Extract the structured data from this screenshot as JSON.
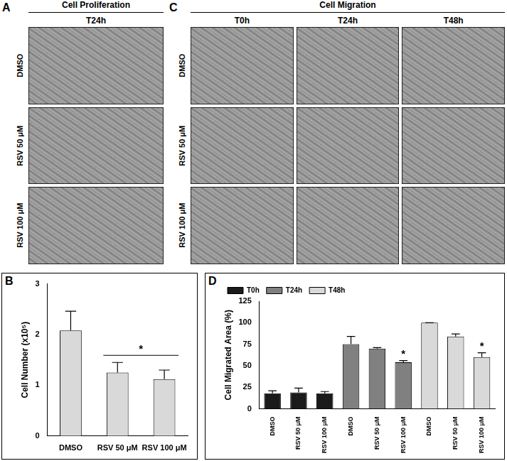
{
  "panels": {
    "A": {
      "letter": "A",
      "header": "Cell Proliferation",
      "columns": [
        "T24h"
      ],
      "rows": [
        "DMSO",
        "RSV 50 μM",
        "RSV 100 μM"
      ]
    },
    "C": {
      "letter": "C",
      "header": "Cell Migration",
      "columns": [
        "T0h",
        "T24h",
        "T48h"
      ],
      "rows": [
        "DMSO",
        "RSV 50 μM",
        "RSV 100 μM"
      ]
    }
  },
  "chart_data": [
    {
      "panel": "B",
      "type": "bar",
      "categories": [
        "DMSO",
        "RSV 50 μM",
        "RSV 100 μM"
      ],
      "values": [
        2.08,
        1.25,
        1.12
      ],
      "errors": [
        0.38,
        0.2,
        0.18
      ],
      "color": "#d9d9d9",
      "y_label": "Cell Number (x10⁵)",
      "ylim": [
        0,
        3
      ],
      "yticks": [
        0,
        1,
        2,
        3
      ],
      "grid": false,
      "annotations": [
        {
          "text": "*",
          "categories": [
            1,
            2
          ]
        }
      ]
    },
    {
      "panel": "D",
      "type": "bar",
      "categories": [
        "DMSO",
        "RSV 50 μM",
        "RSV 100 μM",
        "DMSO",
        "RSV 50 μM",
        "RSV 100 μM",
        "DMSO",
        "RSV 50 μM",
        "RSV 100 μM"
      ],
      "series": [
        {
          "name": "T0h",
          "color": "#1a1a1a",
          "values": [
            18,
            19,
            18,
            null,
            null,
            null,
            null,
            null,
            null
          ],
          "errors": [
            3,
            5,
            2,
            null,
            null,
            null,
            null,
            null,
            null
          ]
        },
        {
          "name": "T24h",
          "color": "#808080",
          "values": [
            null,
            null,
            null,
            75,
            70,
            54,
            null,
            null,
            null
          ],
          "errors": [
            null,
            null,
            null,
            9,
            1,
            2,
            null,
            null,
            null
          ]
        },
        {
          "name": "T48h",
          "color": "#d9d9d9",
          "values": [
            null,
            null,
            null,
            null,
            null,
            null,
            100,
            84,
            60
          ],
          "errors": [
            null,
            null,
            null,
            null,
            null,
            null,
            0,
            3,
            5
          ]
        }
      ],
      "y_label": "Cell Migrated Area (%)",
      "ylim": [
        0,
        125
      ],
      "yticks": [
        0,
        25,
        50,
        75,
        100,
        125
      ],
      "grid": false,
      "legend": "top-left",
      "annotations": [
        {
          "text": "*",
          "series": "T24h",
          "category": 5
        },
        {
          "text": "*",
          "series": "T48h",
          "category": 8
        }
      ]
    }
  ]
}
